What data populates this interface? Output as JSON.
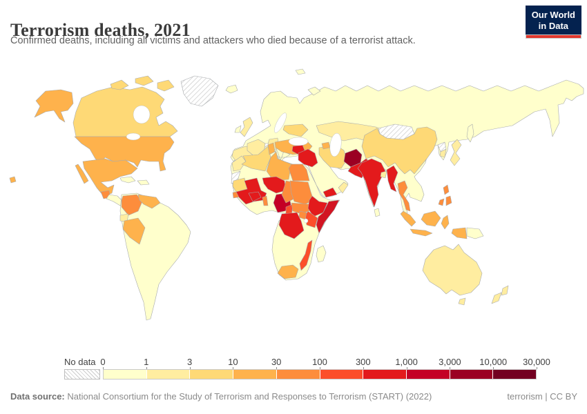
{
  "header": {
    "title": "Terrorism deaths, 2021",
    "subtitle": "Confirmed deaths, including all victims and attackers who died because of a terrorist attack."
  },
  "logo": {
    "line1": "Our World",
    "line2": "in Data",
    "bg": "#04224f",
    "accent": "#e0372e"
  },
  "legend": {
    "no_data_label": "No data",
    "ticks": [
      "0",
      "1",
      "3",
      "10",
      "30",
      "100",
      "300",
      "1,000",
      "3,000",
      "10,000",
      "30,000"
    ],
    "colors": [
      "#FFFFCC",
      "#FFEDA0",
      "#FED976",
      "#FEB24C",
      "#FD8D3C",
      "#FC4E2A",
      "#E31A1C",
      "#C40025",
      "#9B0023",
      "#730021"
    ]
  },
  "footer": {
    "source_label": "Data source:",
    "source_text": " National Consortium for the Study of Terrorism and Responses to Terrorism (START) (2022)",
    "right_text": "terrorism | CC BY"
  },
  "chart_data": {
    "type": "choropleth",
    "title": "Terrorism deaths, 2021",
    "year": 2021,
    "unit": "deaths",
    "base_color": "#FFFFCC",
    "bin_edges": [
      "0",
      "1",
      "3",
      "10",
      "30",
      "100",
      "300",
      "1,000",
      "3,000",
      "10,000",
      "30,000"
    ],
    "bin_colors": [
      "#FFFFCC",
      "#FFEDA0",
      "#FED976",
      "#FEB24C",
      "#FD8D3C",
      "#FC4E2A",
      "#E31A1C",
      "#C40025",
      "#9B0023",
      "#730021"
    ],
    "no_data_pattern": "hatched",
    "no_data_countries": [
      "Greenland",
      "Mongolia",
      "Western Sahara",
      "North Korea"
    ],
    "country_colors": {
      "greenland": "hatch",
      "mongolia": "hatch",
      "western-sahara": "hatch",
      "north-korea": "hatch",
      "canada": "#FED976",
      "alaska": "#FEB24C",
      "usa": "#FEB24C",
      "hawaii": "#FEB24C",
      "mexico": "#FEB24C",
      "guatemala": "#FD8D3C",
      "colombia": "#FD8D3C",
      "venezuela": "#FEB24C",
      "peru": "#FEB24C",
      "ecuador": "#FFEDA0",
      "uk": "#FFEDA0",
      "france": "#FFEDA0",
      "germany": "#FFEDA0",
      "spain": "#FFEDA0",
      "ukraine": "#FED976",
      "turkey": "#FEB24C",
      "syria": "#E31A1C",
      "iraq": "#E31A1C",
      "iran": "#FED976",
      "yemen": "#E31A1C",
      "oman": "#FFEDA0",
      "azerbaijan": "#FEB24C",
      "afghanistan": "#9B0023",
      "pakistan": "#E31A1C",
      "india": "#E31A1C",
      "bangladesh": "#FFEDA0",
      "myanmar": "#E31A1C",
      "thailand": "#FD8D3C",
      "china": "#FED976",
      "kazakhstan": "#FFEDA0",
      "tajikistan": "#FEB24C",
      "japan": "#FFEDA0",
      "south-korea": "#FFEDA0",
      "philippines": "#FD8D3C",
      "indonesia": "#FEB24C",
      "australia": "#FFEDA0",
      "tasmania": "#FFEDA0",
      "new-zealand": "#FFEDA0",
      "morocco": "#FFEDA0",
      "algeria": "#FED976",
      "tunisia": "#FEB24C",
      "libya": "#FEB24C",
      "egypt": "#FD8D3C",
      "mauritania": "#FED976",
      "senegal": "#FD8D3C",
      "mali": "#E31A1C",
      "burkina-faso": "#E31A1C",
      "niger": "#E31A1C",
      "benin": "#FD8D3C",
      "nigeria": "#C40025",
      "chad": "#FD8D3C",
      "sudan": "#FD8D3C",
      "cameroon": "#FC4E2A",
      "car-ssudan": "#FD8D3C",
      "ethiopia": "#E31A1C",
      "somalia": "#D21422",
      "kenya": "#FC4E2A",
      "uganda": "#FD8D3C",
      "drc": "#E31A1C",
      "mozambique": "#FC4E2A",
      "south-africa": "#FEB24C"
    }
  }
}
